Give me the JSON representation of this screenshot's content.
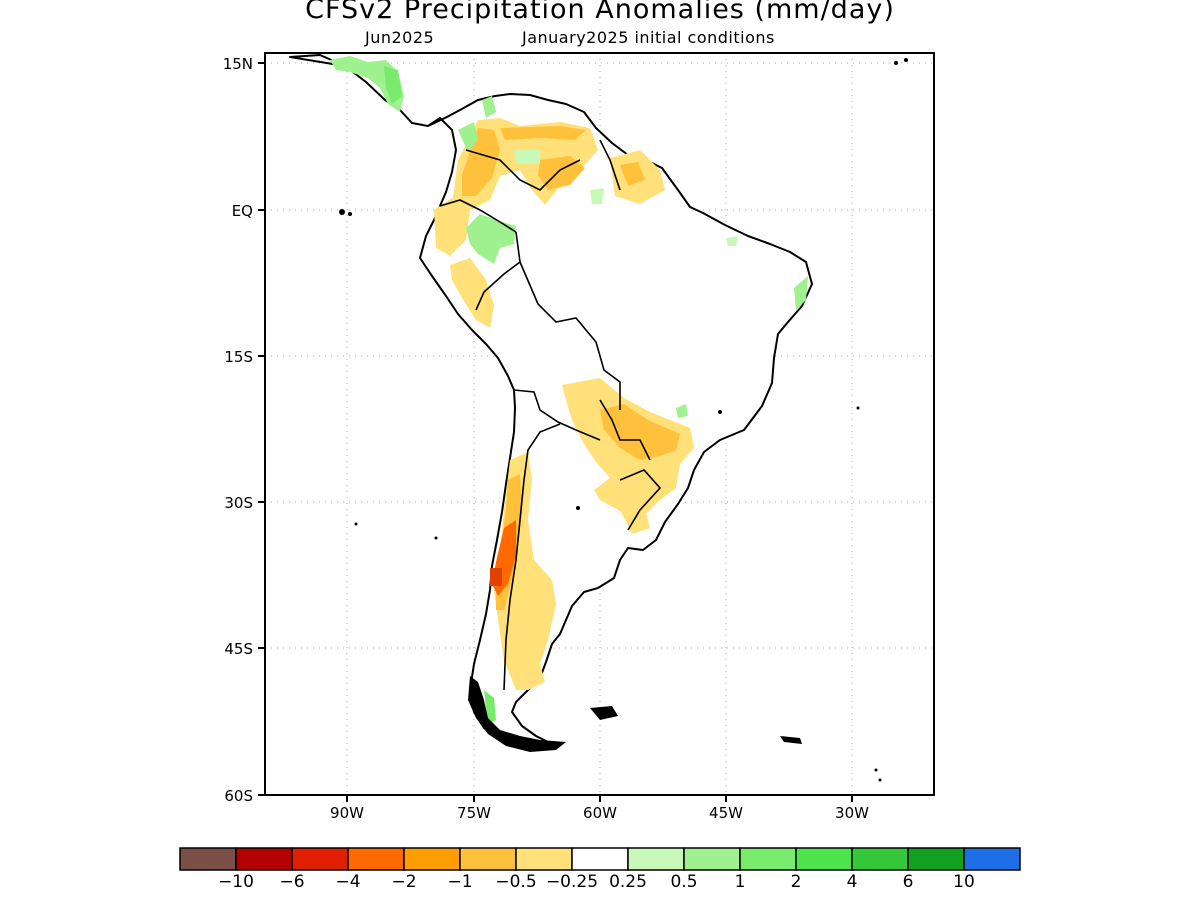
{
  "title": "CFSv2 Precipitation Anomalies (mm/day)",
  "subtitle_left": "Jun2025",
  "subtitle_right": "January2025 initial conditions",
  "map": {
    "lon_range": [
      "94W",
      "26W"
    ],
    "lat_range": [
      "15N",
      "60S"
    ],
    "lat_ticks": [
      "15N",
      "EQ",
      "15S",
      "30S",
      "45S",
      "60S"
    ],
    "lon_ticks": [
      "90W",
      "75W",
      "60W",
      "45W",
      "30W"
    ],
    "grid": "dotted",
    "region": "South America"
  },
  "legend": {
    "labels": [
      "-10",
      "-6",
      "-4",
      "-2",
      "-1",
      "-0.5",
      "-0.25",
      "0.25",
      "0.5",
      "1",
      "2",
      "4",
      "6",
      "10"
    ],
    "colors": [
      "#7a4f45",
      "#b30000",
      "#e01e00",
      "#ff6a00",
      "#ff9e00",
      "#ffc03c",
      "#ffe079",
      "#ffffff",
      "#c8f9b9",
      "#9ff08f",
      "#78ea6c",
      "#4de34c",
      "#35c83a",
      "#12a11e",
      "#1e6ee6"
    ]
  }
}
